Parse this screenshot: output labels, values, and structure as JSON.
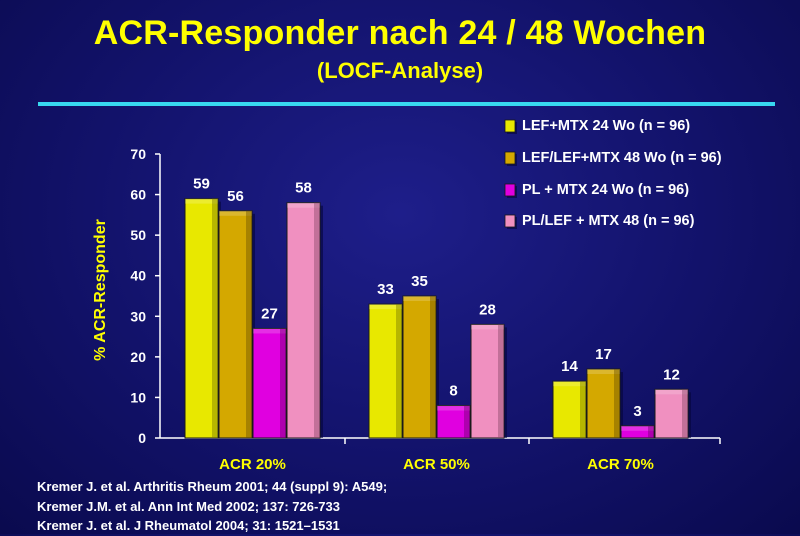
{
  "title": "ACR-Responder nach 24 / 48 Wochen",
  "subtitle": "(LOCF-Analyse)",
  "references": [
    "Kremer J. et al. Arthritis Rheum 2001; 44 (suppl 9): A549;",
    "Kremer J.M. et al. Ann Int Med 2002;  137: 726-733",
    "Kremer J. et al. J Rheumatol 2004; 31: 1521–1531"
  ],
  "chart_data": {
    "type": "bar",
    "ylabel": "% ACR-Responder",
    "xlabel": "",
    "ylim": [
      0,
      70
    ],
    "yticks": [
      0,
      10,
      20,
      30,
      40,
      50,
      60,
      70
    ],
    "categories": [
      "ACR 20%",
      "ACR 50%",
      "ACR 70%"
    ],
    "series": [
      {
        "name": "LEF+MTX 24 Wo (n = 96)",
        "values": [
          59,
          33,
          14
        ],
        "color": "#e8e800"
      },
      {
        "name": "LEF/LEF+MTX 48 Wo (n = 96)",
        "values": [
          56,
          35,
          17
        ],
        "color": "#d4a800"
      },
      {
        "name": "PL + MTX 24 Wo (n = 96)",
        "values": [
          27,
          8,
          3
        ],
        "color": "#e000e0"
      },
      {
        "name": "PL/LEF + MTX 48 (n = 96)",
        "values": [
          58,
          28,
          12
        ],
        "color": "#f090c0"
      }
    ],
    "legend_position": "top-right",
    "grid": false
  },
  "colors": {
    "background": "#12126a",
    "title": "#ffff00",
    "rule": "#38d8f0",
    "axis_text": "#ffffff",
    "category_label": "#ffff00"
  }
}
